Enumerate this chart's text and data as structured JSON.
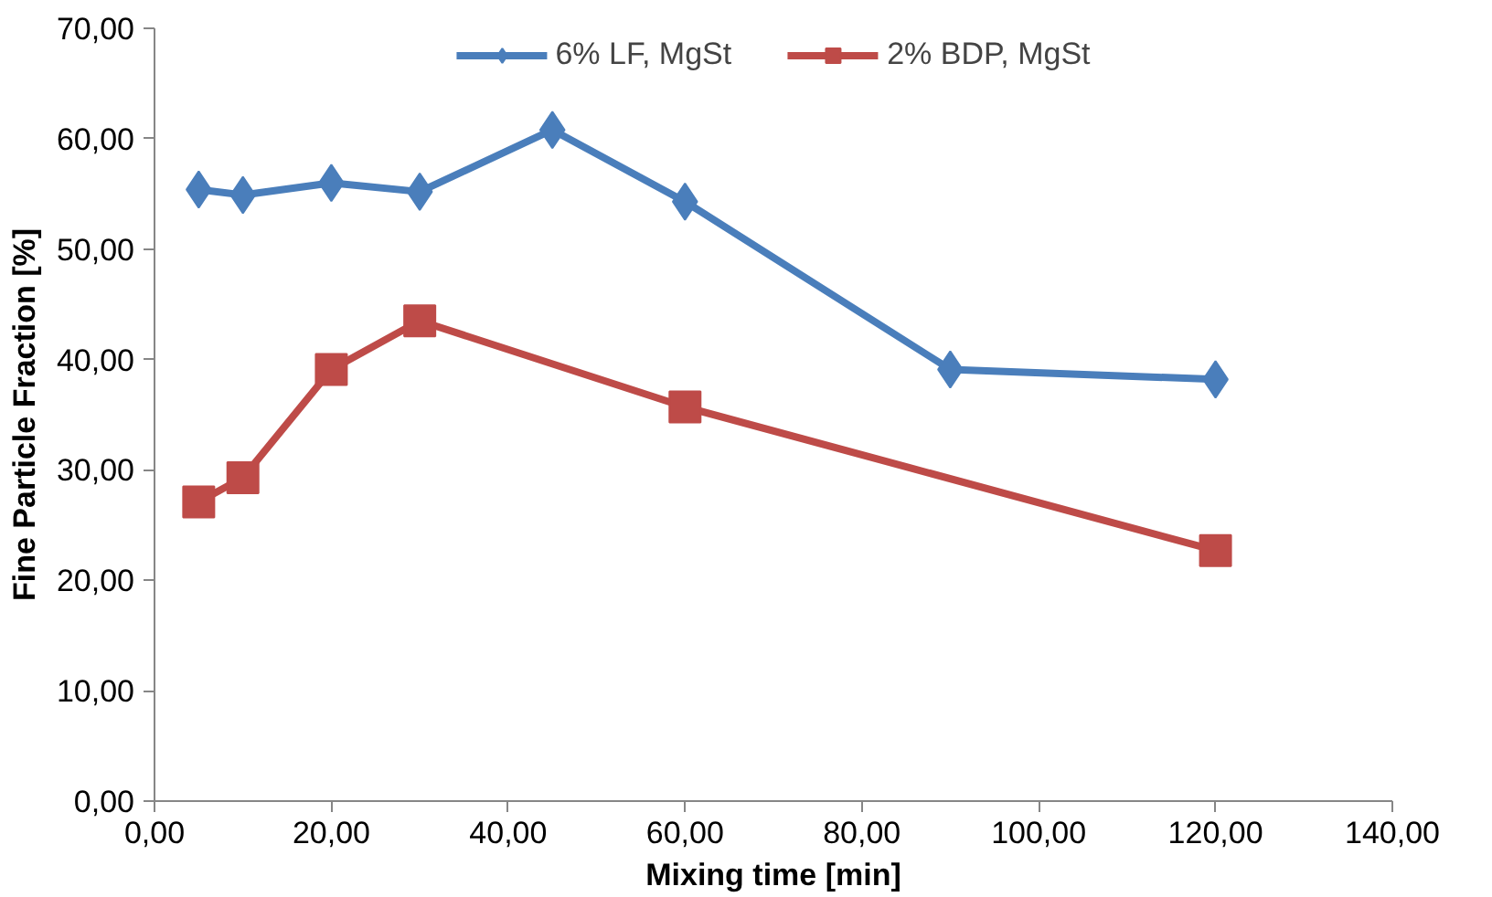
{
  "chart_data": {
    "type": "line",
    "xlabel": "Mixing time [min]",
    "ylabel": "Fine Particle Fraction [%]",
    "xlim": [
      0,
      140
    ],
    "xticks": [
      {
        "value": 0,
        "label": "0,00"
      },
      {
        "value": 20,
        "label": "20,00"
      },
      {
        "value": 40,
        "label": "40,00"
      },
      {
        "value": 60,
        "label": "60,00"
      },
      {
        "value": 80,
        "label": "80,00"
      },
      {
        "value": 100,
        "label": "100,00"
      },
      {
        "value": 120,
        "label": "120,00"
      },
      {
        "value": 140,
        "label": "140,00"
      }
    ],
    "ylim": [
      0,
      70
    ],
    "yticks": [
      {
        "value": 0,
        "label": "0,00"
      },
      {
        "value": 10,
        "label": "10,00"
      },
      {
        "value": 20,
        "label": "20,00"
      },
      {
        "value": 30,
        "label": "30,00"
      },
      {
        "value": 40,
        "label": "40,00"
      },
      {
        "value": 50,
        "label": "50,00"
      },
      {
        "value": 60,
        "label": "60,00"
      },
      {
        "value": 70,
        "label": "70,00"
      }
    ],
    "grid": false,
    "legend": "top",
    "series": [
      {
        "name": "6% LF, MgSt",
        "color": "#4a7ebb",
        "marker": "diamond",
        "x": [
          5,
          10,
          20,
          30,
          45,
          60,
          90,
          120
        ],
        "values": [
          55.4,
          54.9,
          56.0,
          55.2,
          60.8,
          54.3,
          39.1,
          38.2
        ]
      },
      {
        "name": "2% BDP, MgSt",
        "color": "#be4b48",
        "marker": "square",
        "x": [
          5,
          10,
          20,
          30,
          60,
          120
        ],
        "values": [
          27.1,
          29.3,
          39.1,
          43.5,
          35.7,
          22.7
        ]
      }
    ]
  }
}
